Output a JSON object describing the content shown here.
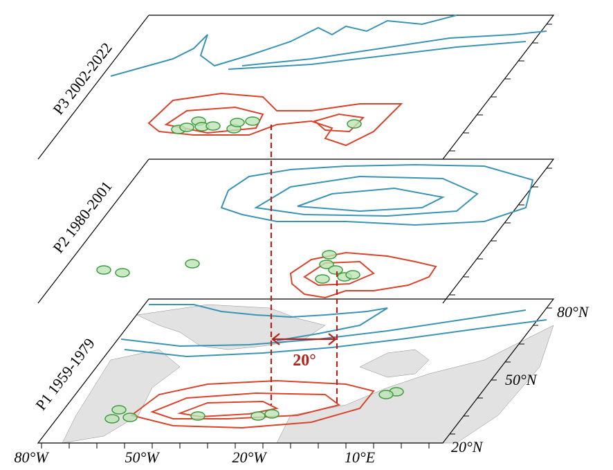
{
  "panels": [
    {
      "label": "P3 2002-2022"
    },
    {
      "label": "P2 1980-2001"
    },
    {
      "label": "P1 1959-1979"
    }
  ],
  "lon_labels": [
    "80°W",
    "50°W",
    "20°W",
    "10°E"
  ],
  "lat_labels": [
    "80°N",
    "50°N",
    "20°N"
  ],
  "annotation": "20°"
}
